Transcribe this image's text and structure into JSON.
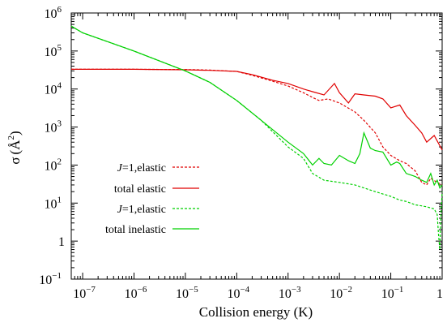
{
  "chart_data": {
    "type": "line",
    "xlabel": "Collision energy (K)",
    "ylabel_symbol": "σ",
    "ylabel_unit_base": "(Å",
    "ylabel_unit_exp": "2",
    "ylabel_unit_close": ")",
    "x_scale": "log",
    "y_scale": "log",
    "xlim": [
      6e-08,
      1.0
    ],
    "ylim": [
      0.1,
      1000000
    ],
    "grid": false,
    "legend_position": "left",
    "x_ticks": [
      {
        "value": 1e-07,
        "base": "10",
        "exp": "−7"
      },
      {
        "value": 1e-06,
        "base": "10",
        "exp": "−6"
      },
      {
        "value": 1e-05,
        "base": "10",
        "exp": "−5"
      },
      {
        "value": 0.0001,
        "base": "10",
        "exp": "−4"
      },
      {
        "value": 0.001,
        "base": "10",
        "exp": "−3"
      },
      {
        "value": 0.01,
        "base": "10",
        "exp": "−2"
      },
      {
        "value": 0.1,
        "base": "10",
        "exp": "−1"
      },
      {
        "value": 1,
        "base": "1",
        "exp": ""
      }
    ],
    "y_ticks": [
      {
        "value": 1000000,
        "base": "10",
        "exp": "6"
      },
      {
        "value": 100000,
        "base": "10",
        "exp": "5"
      },
      {
        "value": 10000,
        "base": "10",
        "exp": "4"
      },
      {
        "value": 1000,
        "base": "10",
        "exp": "3"
      },
      {
        "value": 100,
        "base": "10",
        "exp": "2"
      },
      {
        "value": 10,
        "base": "10",
        "exp": "1"
      },
      {
        "value": 1,
        "base": "1",
        "exp": ""
      },
      {
        "value": 0.1,
        "base": "10",
        "exp": "−1"
      }
    ],
    "series": [
      {
        "name_italic": "J",
        "name_rest": "=1,elastic",
        "color": "#e00000",
        "dash": true,
        "x": [
          6e-08,
          1e-07,
          1e-06,
          1e-05,
          3e-05,
          0.0001,
          0.0002,
          0.0005,
          0.001,
          0.002,
          0.003,
          0.004,
          0.006,
          0.01,
          0.02,
          0.03,
          0.05,
          0.07,
          0.1,
          0.15,
          0.2,
          0.3,
          0.4,
          0.5,
          0.6,
          0.8,
          1.0
        ],
        "y": [
          33000,
          33000,
          33000,
          32500,
          31500,
          29000,
          23000,
          16000,
          12000,
          8000,
          6000,
          5000,
          5500,
          4300,
          2500,
          1500,
          700,
          300,
          180,
          130,
          110,
          70,
          35,
          30,
          45,
          35,
          30
        ]
      },
      {
        "name": "total elastic",
        "color": "#e00000",
        "dash": false,
        "x": [
          6e-08,
          1e-07,
          1e-06,
          1e-05,
          3e-05,
          0.0001,
          0.0002,
          0.0005,
          0.001,
          0.002,
          0.003,
          0.005,
          0.008,
          0.01,
          0.015,
          0.02,
          0.03,
          0.05,
          0.07,
          0.1,
          0.15,
          0.2,
          0.3,
          0.4,
          0.5,
          0.7,
          1.0
        ],
        "y": [
          33000,
          33000,
          33000,
          32000,
          31000,
          29000,
          24000,
          17000,
          14000,
          10000,
          8500,
          7000,
          14000,
          8000,
          4300,
          7500,
          7000,
          6500,
          5500,
          3200,
          3800,
          2000,
          1100,
          700,
          400,
          600,
          250
        ]
      },
      {
        "name_italic": "J",
        "name_rest": "=1,elastic",
        "color": "#00d000",
        "dash": true,
        "x": [
          6e-08,
          1e-07,
          1e-06,
          1e-05,
          3e-05,
          0.0001,
          0.0003,
          0.001,
          0.002,
          0.003,
          0.005,
          0.01,
          0.02,
          0.03,
          0.05,
          0.1,
          0.15,
          0.2,
          0.3,
          0.5,
          0.7,
          0.8,
          0.85,
          0.9,
          0.95,
          1.0
        ],
        "y": [
          450000,
          300000,
          100000,
          30000,
          15000,
          5000,
          1500,
          300,
          150,
          60,
          40,
          35,
          30,
          25,
          20,
          15,
          12,
          11,
          9,
          8,
          7,
          5,
          1.5,
          0.6,
          5,
          20
        ]
      },
      {
        "name": "total inelastic",
        "color": "#00d000",
        "dash": false,
        "x": [
          6e-08,
          1e-07,
          1e-06,
          1e-05,
          3e-05,
          0.0001,
          0.0003,
          0.001,
          0.002,
          0.003,
          0.004,
          0.005,
          0.007,
          0.01,
          0.015,
          0.02,
          0.025,
          0.03,
          0.04,
          0.05,
          0.07,
          0.1,
          0.13,
          0.15,
          0.2,
          0.3,
          0.4,
          0.5,
          0.6,
          0.7,
          0.8,
          0.9,
          1.0
        ],
        "y": [
          450000,
          300000,
          100000,
          30000,
          15000,
          5000,
          1500,
          400,
          200,
          100,
          150,
          110,
          100,
          180,
          130,
          110,
          200,
          700,
          280,
          240,
          220,
          100,
          120,
          110,
          60,
          50,
          40,
          35,
          60,
          30,
          40,
          25,
          30
        ]
      }
    ]
  }
}
